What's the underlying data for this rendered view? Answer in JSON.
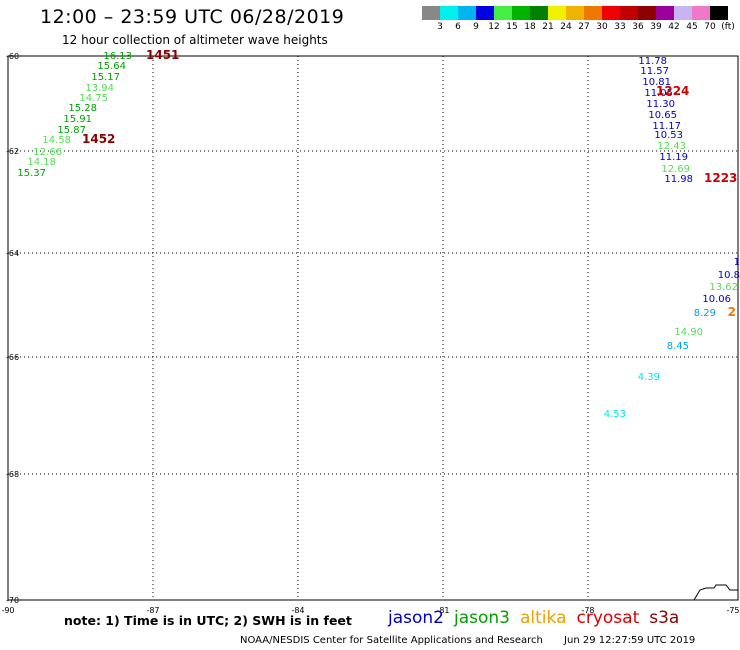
{
  "header": {
    "title": "12:00 – 23:59 UTC 06/28/2019",
    "subtitle": "12 hour collection of altimeter wave heights"
  },
  "colorbar": {
    "colors": [
      "#888888",
      "#00f0f0",
      "#00b4f0",
      "#0000e0",
      "#44ee44",
      "#00b400",
      "#008200",
      "#f0f000",
      "#f0b400",
      "#f07800",
      "#f00000",
      "#c00000",
      "#8c0000",
      "#9c009c",
      "#c8b4f0",
      "#f078c8",
      "#000000"
    ],
    "labels": [
      "3",
      "6",
      "9",
      "12",
      "15",
      "18",
      "21",
      "24",
      "27",
      "30",
      "33",
      "36",
      "39",
      "42",
      "45",
      "70",
      "(ft)"
    ]
  },
  "axes": {
    "lat_labels": [
      "-60",
      "-62",
      "-64",
      "-66",
      "-68",
      "-70"
    ],
    "lon_labels": [
      "-90",
      "-87",
      "-84",
      "-81",
      "-78",
      "-75"
    ]
  },
  "passes": [
    {
      "id": "1451",
      "color": "#8b0000",
      "points": [
        {
          "v": "16.13",
          "c": "#00a000"
        },
        {
          "v": "15.64",
          "c": "#00a000"
        },
        {
          "v": "15.17",
          "c": "#00a000"
        },
        {
          "v": "13.94",
          "c": "#55dd55"
        },
        {
          "v": "14.75",
          "c": "#55dd55"
        },
        {
          "v": "15.28",
          "c": "#00a000"
        },
        {
          "v": "15.91",
          "c": "#00a000"
        },
        {
          "v": "15.87",
          "c": "#00a000"
        },
        {
          "v": "14.58",
          "c": "#55dd55"
        },
        {
          "v": "12.66",
          "c": "#55dd55"
        },
        {
          "v": "14.18",
          "c": "#55dd55"
        },
        {
          "v": "15.37",
          "c": "#00a000"
        }
      ]
    },
    {
      "id": "1452",
      "color": "#8b0000",
      "points": []
    },
    {
      "id": "1224",
      "color": "#cc0000",
      "points": [
        {
          "v": "11.78",
          "c": "#0000c8"
        },
        {
          "v": "11.57",
          "c": "#0000c8"
        },
        {
          "v": "10.81",
          "c": "#0000c8"
        },
        {
          "v": "11.05",
          "c": "#0000c8"
        },
        {
          "v": "11.30",
          "c": "#0000c8"
        },
        {
          "v": "10.65",
          "c": "#0000c8"
        },
        {
          "v": "11.17",
          "c": "#0000c8"
        },
        {
          "v": "10.53",
          "c": "#0000c8"
        },
        {
          "v": "12.43",
          "c": "#55dd55"
        },
        {
          "v": "11.19",
          "c": "#0000c8"
        },
        {
          "v": "12.69",
          "c": "#55dd55"
        },
        {
          "v": "11.98",
          "c": "#0000c8"
        }
      ]
    },
    {
      "id": "1223",
      "color": "#cc0000",
      "points": []
    },
    {
      "id": "2",
      "color": "#f07800",
      "points": [
        {
          "v": "1",
          "c": "#0000c8"
        },
        {
          "v": "10.8",
          "c": "#0000c8"
        },
        {
          "v": "13.62",
          "c": "#55dd55"
        },
        {
          "v": "10.06",
          "c": "#0000c8"
        },
        {
          "v": "8.29",
          "c": "#00a0f0"
        },
        {
          "v": "14.90",
          "c": "#55dd55"
        },
        {
          "v": "8.45",
          "c": "#00a0f0"
        },
        {
          "v": "4.39",
          "c": "#00e8e8"
        },
        {
          "v": "4.53",
          "c": "#00e8e8"
        }
      ]
    }
  ],
  "note": "note: 1) Time is in UTC; 2) SWH is in feet",
  "legend": [
    {
      "label": "jason2",
      "color": "#0000c8"
    },
    {
      "label": "jason3",
      "color": "#00a000"
    },
    {
      "label": "altika",
      "color": "#f0a000"
    },
    {
      "label": "cryosat",
      "color": "#e00000"
    },
    {
      "label": "s3a",
      "color": "#8b0000"
    }
  ],
  "footer": {
    "org": "NOAA/NESDIS Center for Satellite Applications and Research",
    "timestamp": "Jun 29 12:27:59 UTC 2019"
  }
}
